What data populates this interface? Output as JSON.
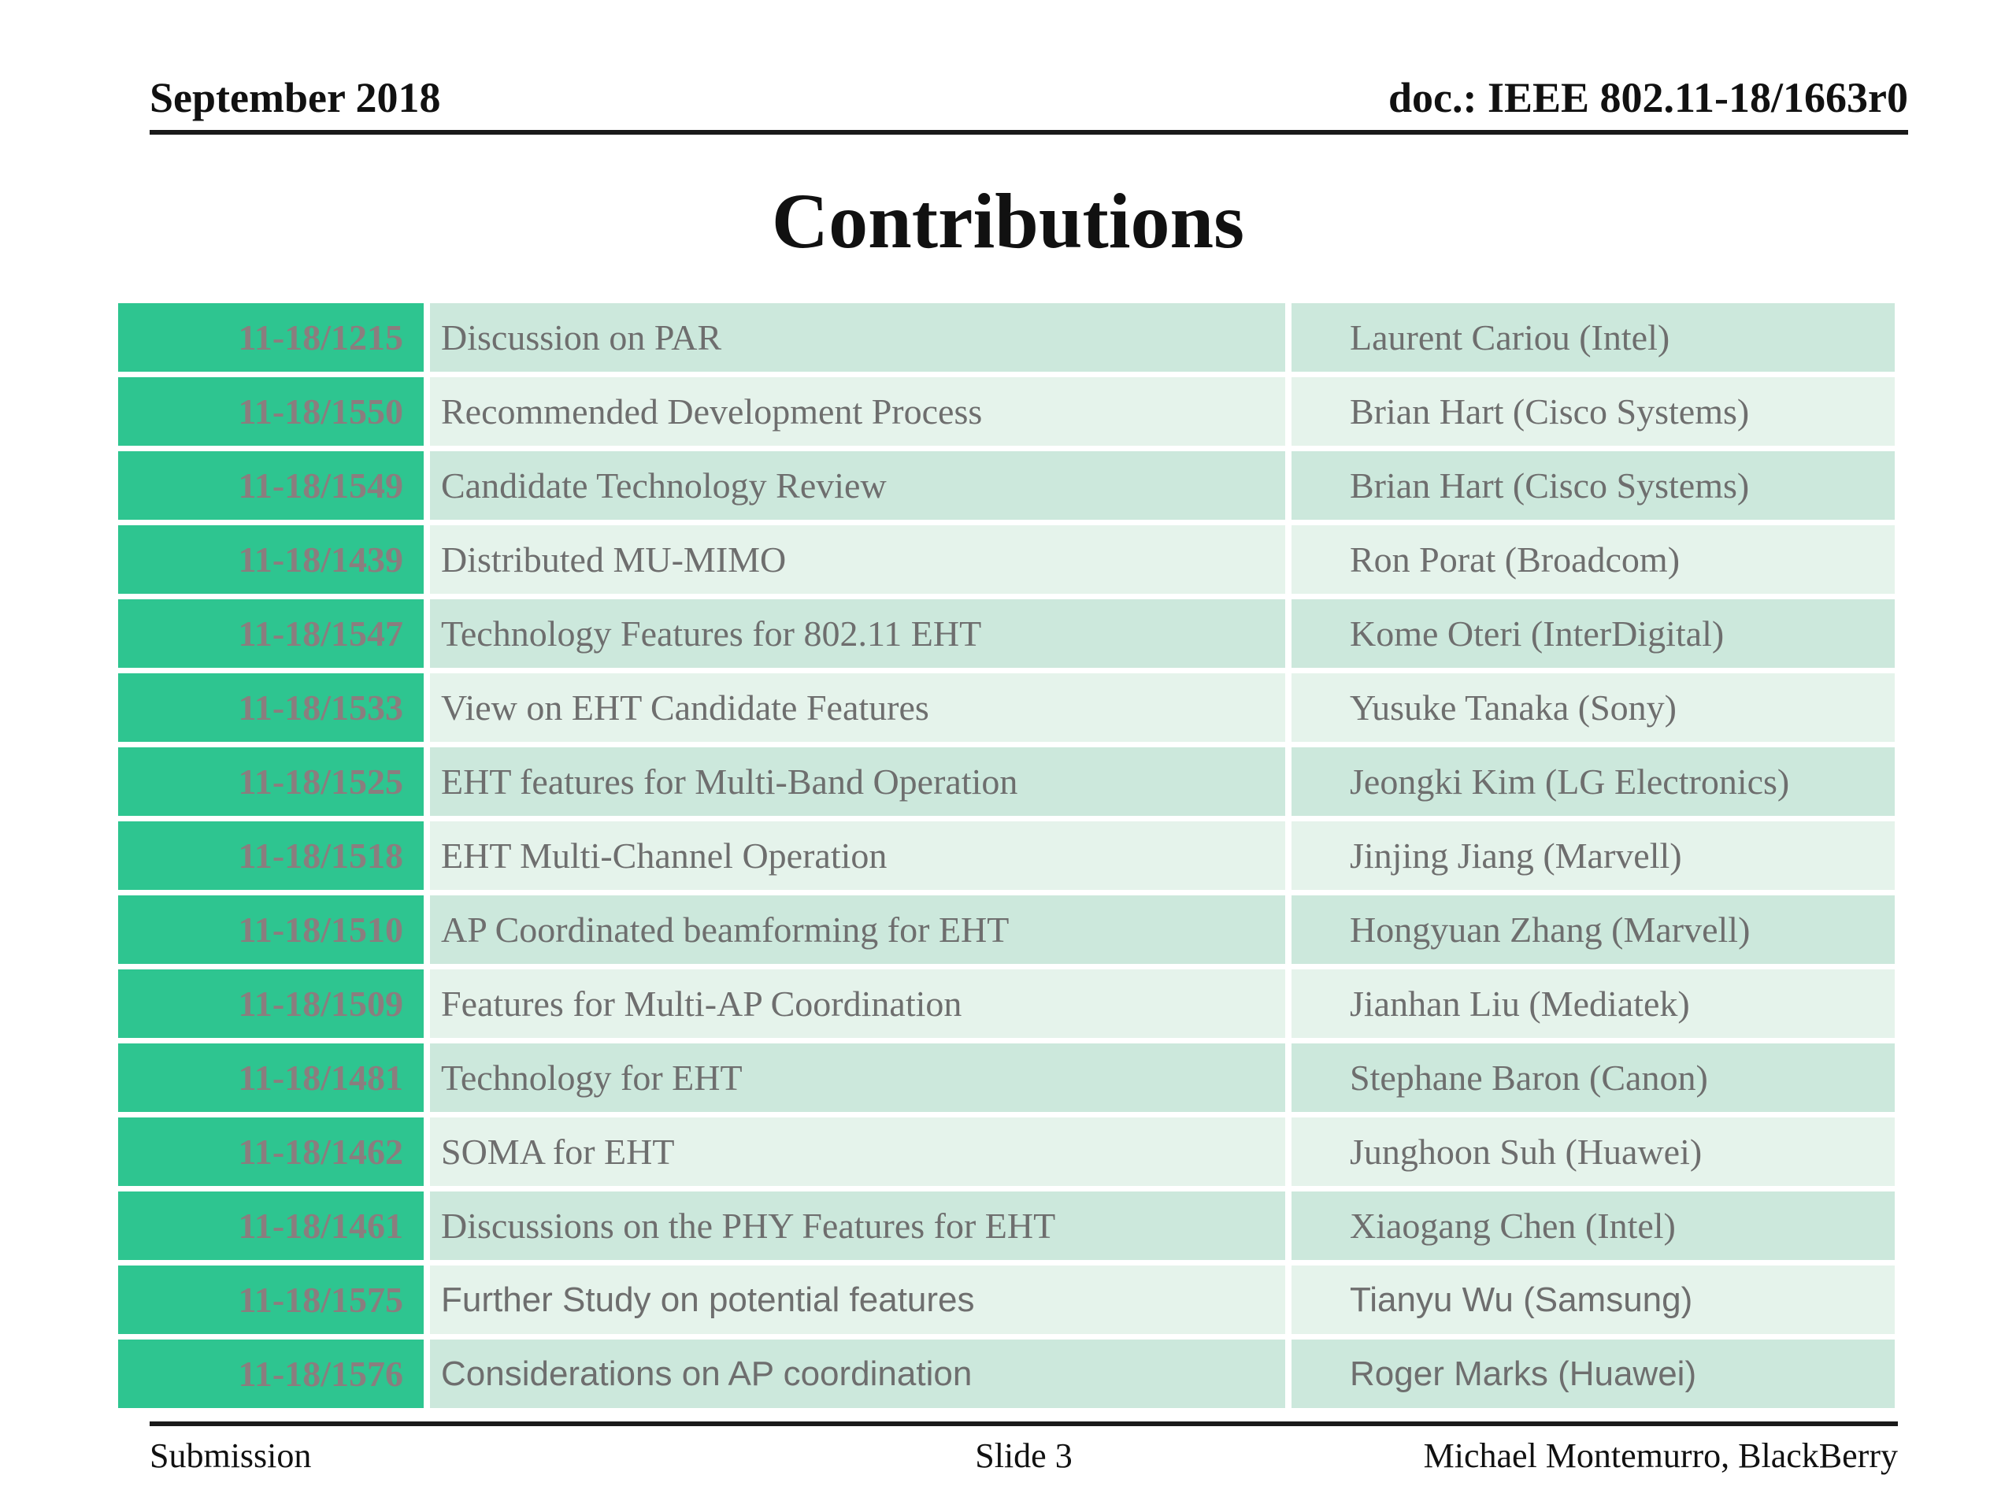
{
  "header": {
    "left": "September 2018",
    "right": "doc.: IEEE 802.11-18/1663r0"
  },
  "title": "Contributions",
  "table": {
    "rows": [
      {
        "doc": "11-18/1215",
        "title": "Discussion on PAR",
        "author": "Laurent Cariou (Intel)",
        "font": "serif"
      },
      {
        "doc": "11-18/1550",
        "title": "Recommended Development Process",
        "author": "Brian Hart (Cisco Systems)",
        "font": "serif"
      },
      {
        "doc": "11-18/1549",
        "title": "Candidate Technology Review",
        "author": "Brian Hart (Cisco Systems)",
        "font": "serif"
      },
      {
        "doc": "11-18/1439",
        "title": "Distributed MU-MIMO",
        "author": "Ron Porat (Broadcom)",
        "font": "serif"
      },
      {
        "doc": "11-18/1547",
        "title": "Technology Features for 802.11 EHT",
        "author": "Kome Oteri (InterDigital)",
        "font": "serif"
      },
      {
        "doc": "11-18/1533",
        "title": "View on EHT Candidate Features",
        "author": "Yusuke Tanaka (Sony)",
        "font": "serif"
      },
      {
        "doc": "11-18/1525",
        "title": "EHT features for Multi-Band Operation",
        "author": "Jeongki Kim (LG Electronics)",
        "font": "serif"
      },
      {
        "doc": "11-18/1518",
        "title": "EHT Multi-Channel Operation",
        "author": "Jinjing Jiang (Marvell)",
        "font": "serif"
      },
      {
        "doc": "11-18/1510",
        "title": "AP Coordinated beamforming for EHT",
        "author": "Hongyuan Zhang (Marvell)",
        "font": "serif"
      },
      {
        "doc": "11-18/1509",
        "title": "Features for Multi-AP Coordination",
        "author": "Jianhan Liu (Mediatek)",
        "font": "serif"
      },
      {
        "doc": "11-18/1481",
        "title": "Technology for EHT",
        "author": "Stephane Baron (Canon)",
        "font": "serif"
      },
      {
        "doc": "11-18/1462",
        "title": "SOMA for EHT",
        "author": "Junghoon Suh (Huawei)",
        "font": "serif"
      },
      {
        "doc": "11-18/1461",
        "title": "Discussions on the PHY Features for EHT",
        "author": "Xiaogang Chen (Intel)",
        "font": "serif"
      },
      {
        "doc": "11-18/1575",
        "title": "Further Study on potential features",
        "author": "Tianyu Wu (Samsung)",
        "font": "sans"
      },
      {
        "doc": "11-18/1576",
        "title": "Considerations on AP coordination",
        "author": "Roger Marks (Huawei)",
        "font": "sans"
      }
    ]
  },
  "footer": {
    "left": "Submission",
    "center": "Slide 3",
    "right": "Michael Montemurro, BlackBerry"
  },
  "colors": {
    "column_green": "#2EC590",
    "row_dark": "#CCE8DC",
    "row_light": "#E5F3EB",
    "doc_number_text": "#8B7D7E",
    "body_text": "#6E6E6E",
    "heading_text": "#111111"
  }
}
